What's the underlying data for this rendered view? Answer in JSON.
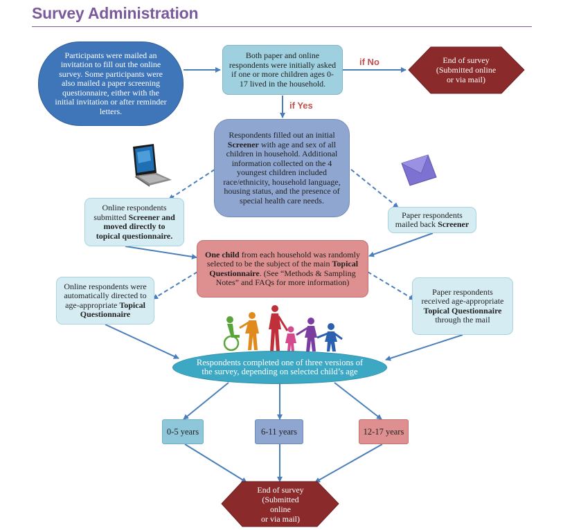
{
  "title": "Survey Administration",
  "colors": {
    "title": "#7b5a9c",
    "arrow": "#4a7ebb",
    "end_hexagon": "#8b2a2a",
    "ellipse": "#3da8c4"
  },
  "nodes": {
    "invitation": "Participants were mailed an invitation to fill out the online survey. Some participants were also mailed a paper screening questionnaire, either with the initial invitation or after reminder letters.",
    "question": "Both paper and online respondents were initially asked if one or more children ages 0-17 lived in the household.",
    "end_top": {
      "line1": "End of survey",
      "line2": "(Submitted online",
      "line3": "or via mail)"
    },
    "screener": {
      "pre": "Respondents filled out an initial ",
      "bold": "Screener",
      "post": " with age and sex of all children in household. Additional information collected on the 4 youngest children included race/ethnicity, household language, housing status, and the presence of special health care needs."
    },
    "online_screener": {
      "pre": "Online respondents submitted ",
      "bold": "Screener and moved directly to topical questionnaire."
    },
    "paper_screener": {
      "pre": "Paper respondents mailed back ",
      "bold": "Screener"
    },
    "one_child": {
      "bold1": "One child",
      "mid": " from each household was randomly selected to be the subject of the main ",
      "bold2": "Topical Questionnaire",
      "post": ". (See “Methods & Sampling Notes” and FAQs for more information)"
    },
    "online_directed": {
      "pre": "Online respondents were automatically directed to age-appropriate ",
      "bold": "Topical Questionnaire"
    },
    "paper_received": {
      "pre": "Paper respondents received age-appropriate ",
      "bold": "Topical Questionnaire",
      "post": " through the mail"
    },
    "completed": "Respondents completed one of three versions of the survey, depending on selected child’s age",
    "age_0_5": "0-5 years",
    "age_6_11": "6-11 years",
    "age_12_17": "12-17 years",
    "end_bottom": {
      "line1": "End of survey",
      "line2": "(Submitted",
      "line3": "online",
      "line4": "or via mail)"
    }
  },
  "edge_labels": {
    "if_no": "if No",
    "if_yes": "if Yes"
  },
  "icons": [
    "laptop-icon",
    "envelope-icon",
    "people-group-icon"
  ]
}
